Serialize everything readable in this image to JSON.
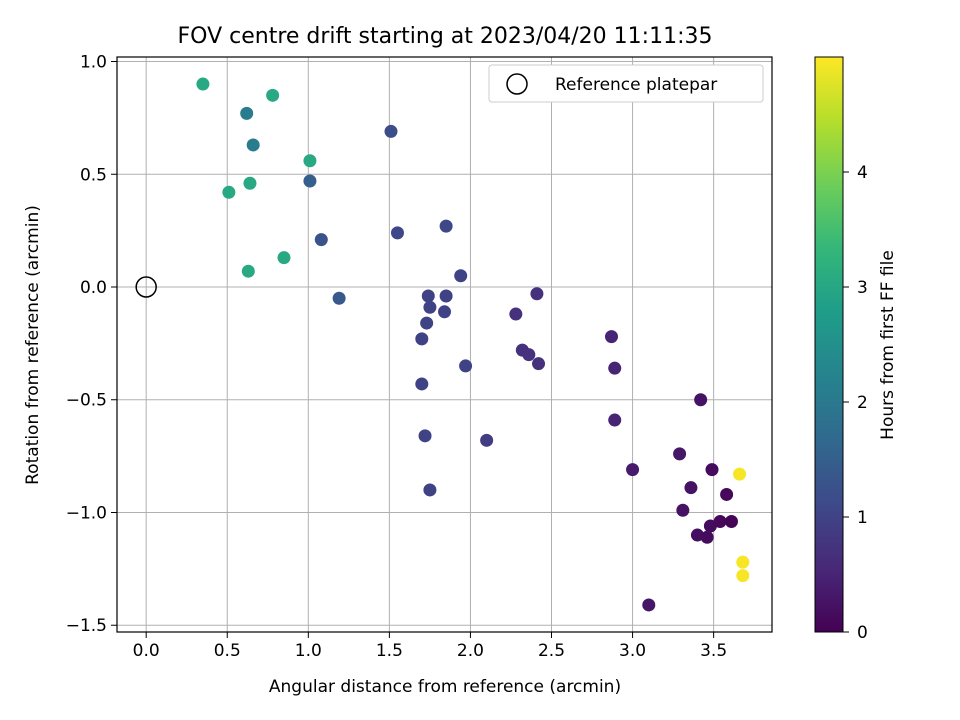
{
  "chart_data": {
    "type": "scatter",
    "title": "FOV centre drift starting at 2023/04/20 11:11:35",
    "xlabel": "Angular distance from reference (arcmin)",
    "ylabel": "Rotation from reference (arcmin)",
    "xlim": [
      -0.18,
      3.86
    ],
    "ylim": [
      -1.53,
      1.02
    ],
    "xticks": [
      "0.0",
      "0.5",
      "1.0",
      "1.5",
      "2.0",
      "2.5",
      "3.0",
      "3.5"
    ],
    "xtick_values": [
      0.0,
      0.5,
      1.0,
      1.5,
      2.0,
      2.5,
      3.0,
      3.5
    ],
    "yticks": [
      "1.0",
      "0.5",
      "0.0",
      "−0.5",
      "−1.0",
      "−1.5"
    ],
    "ytick_values": [
      1.0,
      0.5,
      0.0,
      -0.5,
      -1.0,
      -1.5
    ],
    "grid": true,
    "legend": {
      "placement": "upper right",
      "entries": [
        "Reference platepar"
      ]
    },
    "reference_point": {
      "x": 0.0,
      "y": 0.0
    },
    "colorbar": {
      "label": "Hours from first FF file",
      "range": [
        0,
        5
      ],
      "ticks": [
        "0",
        "1",
        "2",
        "3",
        "4"
      ],
      "tick_values": [
        0,
        1,
        2,
        3,
        4
      ],
      "colormap": "viridis",
      "colors": [
        "#440154",
        "#482878",
        "#3e4989",
        "#31688e",
        "#26828e",
        "#1f9e89",
        "#35b779",
        "#6ece58",
        "#b5de2b",
        "#fde725"
      ]
    },
    "points": [
      {
        "x": 0.35,
        "y": 0.9,
        "h": 3.0
      },
      {
        "x": 0.62,
        "y": 0.77,
        "h": 2.1
      },
      {
        "x": 0.78,
        "y": 0.85,
        "h": 3.0
      },
      {
        "x": 0.66,
        "y": 0.63,
        "h": 2.1
      },
      {
        "x": 1.01,
        "y": 0.56,
        "h": 3.0
      },
      {
        "x": 0.51,
        "y": 0.42,
        "h": 3.0
      },
      {
        "x": 0.64,
        "y": 0.46,
        "h": 3.0
      },
      {
        "x": 1.01,
        "y": 0.47,
        "h": 1.5
      },
      {
        "x": 1.51,
        "y": 0.69,
        "h": 1.2
      },
      {
        "x": 1.08,
        "y": 0.21,
        "h": 1.3
      },
      {
        "x": 0.85,
        "y": 0.13,
        "h": 3.0
      },
      {
        "x": 0.63,
        "y": 0.07,
        "h": 3.0
      },
      {
        "x": 1.19,
        "y": -0.05,
        "h": 1.4
      },
      {
        "x": 1.55,
        "y": 0.24,
        "h": 1.1
      },
      {
        "x": 1.85,
        "y": 0.27,
        "h": 1.1
      },
      {
        "x": 1.94,
        "y": 0.05,
        "h": 1.0
      },
      {
        "x": 1.74,
        "y": -0.04,
        "h": 1.0
      },
      {
        "x": 1.85,
        "y": -0.04,
        "h": 1.0
      },
      {
        "x": 1.75,
        "y": -0.09,
        "h": 1.0
      },
      {
        "x": 1.84,
        "y": -0.11,
        "h": 1.0
      },
      {
        "x": 1.73,
        "y": -0.16,
        "h": 1.0
      },
      {
        "x": 1.7,
        "y": -0.23,
        "h": 1.0
      },
      {
        "x": 1.97,
        "y": -0.35,
        "h": 1.0
      },
      {
        "x": 1.7,
        "y": -0.43,
        "h": 1.0
      },
      {
        "x": 1.72,
        "y": -0.66,
        "h": 1.0
      },
      {
        "x": 1.75,
        "y": -0.9,
        "h": 1.0
      },
      {
        "x": 2.1,
        "y": -0.68,
        "h": 0.9
      },
      {
        "x": 2.28,
        "y": -0.12,
        "h": 0.7
      },
      {
        "x": 2.41,
        "y": -0.03,
        "h": 0.7
      },
      {
        "x": 2.32,
        "y": -0.28,
        "h": 0.7
      },
      {
        "x": 2.36,
        "y": -0.3,
        "h": 0.7
      },
      {
        "x": 2.42,
        "y": -0.34,
        "h": 0.7
      },
      {
        "x": 2.87,
        "y": -0.22,
        "h": 0.5
      },
      {
        "x": 2.89,
        "y": -0.36,
        "h": 0.5
      },
      {
        "x": 2.89,
        "y": -0.59,
        "h": 0.5
      },
      {
        "x": 3.0,
        "y": -0.81,
        "h": 0.35
      },
      {
        "x": 3.1,
        "y": -1.41,
        "h": 0.3
      },
      {
        "x": 3.29,
        "y": -0.74,
        "h": 0.3
      },
      {
        "x": 3.31,
        "y": -0.99,
        "h": 0.25
      },
      {
        "x": 3.36,
        "y": -0.89,
        "h": 0.25
      },
      {
        "x": 3.42,
        "y": -0.5,
        "h": 0.25
      },
      {
        "x": 3.4,
        "y": -1.1,
        "h": 0.2
      },
      {
        "x": 3.46,
        "y": -1.11,
        "h": 0.15
      },
      {
        "x": 3.48,
        "y": -1.06,
        "h": 0.15
      },
      {
        "x": 3.54,
        "y": -1.04,
        "h": 0.1
      },
      {
        "x": 3.49,
        "y": -0.81,
        "h": 0.15
      },
      {
        "x": 3.58,
        "y": -0.92,
        "h": 0.1
      },
      {
        "x": 3.61,
        "y": -1.04,
        "h": 0.05
      },
      {
        "x": 3.66,
        "y": -0.83,
        "h": 4.95
      },
      {
        "x": 3.68,
        "y": -1.22,
        "h": 4.95
      },
      {
        "x": 3.68,
        "y": -1.28,
        "h": 4.95
      }
    ]
  }
}
